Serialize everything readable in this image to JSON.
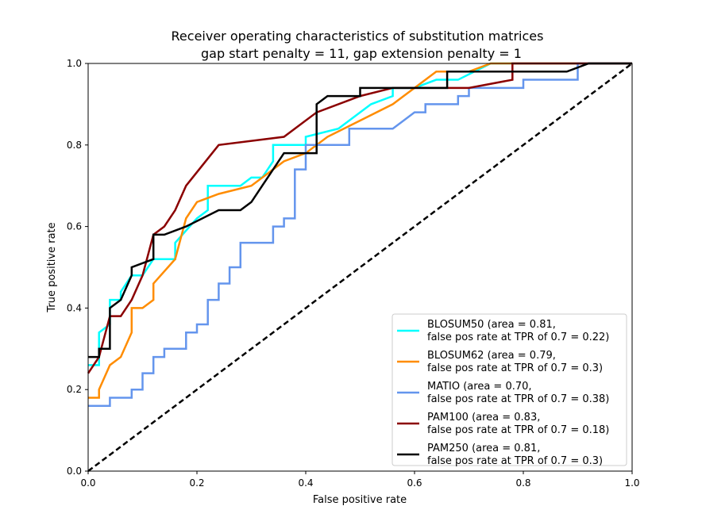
{
  "chart_data": {
    "type": "line",
    "title": "Receiver operating characteristics of substitution matrices",
    "subtitle": "gap start penalty = 11, gap extension penalty = 1",
    "xlabel": "False positive rate",
    "ylabel": "True positive rate",
    "xlim": [
      0.0,
      1.0
    ],
    "ylim": [
      0.0,
      1.0
    ],
    "x_ticks": [
      "0.0",
      "0.2",
      "0.4",
      "0.6",
      "0.8",
      "1.0"
    ],
    "y_ticks": [
      "0.0",
      "0.2",
      "0.4",
      "0.6",
      "0.8",
      "1.0"
    ],
    "grid": false,
    "legend_position": "lower-right",
    "series": [
      {
        "name": "BLOSUM50",
        "legend_line1": "BLOSUM50 (area = 0.81,",
        "legend_line2": "false pos rate at TPR of 0.7 = 0.22)",
        "color": "#00ffff",
        "x": [
          0,
          0.02,
          0.02,
          0.04,
          0.04,
          0.06,
          0.06,
          0.08,
          0.1,
          0.12,
          0.16,
          0.16,
          0.2,
          0.22,
          0.22,
          0.28,
          0.3,
          0.32,
          0.34,
          0.34,
          0.4,
          0.4,
          0.46,
          0.52,
          0.56,
          0.56,
          0.6,
          0.64,
          0.68,
          0.74,
          0.8,
          0.88,
          0.92,
          1.0
        ],
        "y": [
          0.26,
          0.26,
          0.34,
          0.36,
          0.42,
          0.42,
          0.44,
          0.48,
          0.48,
          0.52,
          0.52,
          0.56,
          0.62,
          0.64,
          0.7,
          0.7,
          0.72,
          0.72,
          0.76,
          0.8,
          0.8,
          0.82,
          0.84,
          0.9,
          0.92,
          0.94,
          0.94,
          0.96,
          0.96,
          1.0,
          1.0,
          1.0,
          1.0,
          1.0
        ]
      },
      {
        "name": "BLOSUM62",
        "legend_line1": "BLOSUM62 (area = 0.79,",
        "legend_line2": "false pos rate at TPR of 0.7 = 0.3)",
        "color": "#ff8c00",
        "x": [
          0,
          0.02,
          0.02,
          0.04,
          0.06,
          0.08,
          0.08,
          0.1,
          0.12,
          0.12,
          0.16,
          0.18,
          0.2,
          0.24,
          0.3,
          0.36,
          0.4,
          0.44,
          0.5,
          0.56,
          0.6,
          0.64,
          0.7,
          0.74,
          0.8,
          1.0
        ],
        "y": [
          0.18,
          0.18,
          0.2,
          0.26,
          0.28,
          0.34,
          0.4,
          0.4,
          0.42,
          0.46,
          0.52,
          0.62,
          0.66,
          0.68,
          0.7,
          0.76,
          0.78,
          0.82,
          0.86,
          0.9,
          0.94,
          0.98,
          0.98,
          1.0,
          1.0,
          1.0
        ]
      },
      {
        "name": "MATIO",
        "legend_line1": "MATIO (area = 0.70,",
        "legend_line2": "false pos rate at TPR of 0.7 = 0.38)",
        "color": "#6495ed",
        "x": [
          0,
          0.04,
          0.04,
          0.08,
          0.08,
          0.1,
          0.1,
          0.12,
          0.12,
          0.14,
          0.14,
          0.18,
          0.18,
          0.2,
          0.2,
          0.22,
          0.22,
          0.24,
          0.24,
          0.26,
          0.26,
          0.28,
          0.28,
          0.34,
          0.34,
          0.36,
          0.36,
          0.38,
          0.38,
          0.4,
          0.4,
          0.42,
          0.42,
          0.48,
          0.48,
          0.56,
          0.6,
          0.6,
          0.62,
          0.62,
          0.68,
          0.68,
          0.7,
          0.7,
          0.72,
          0.72,
          0.8,
          0.8,
          0.9,
          0.9,
          1.0
        ],
        "y": [
          0.16,
          0.16,
          0.18,
          0.18,
          0.2,
          0.2,
          0.24,
          0.24,
          0.28,
          0.28,
          0.3,
          0.3,
          0.34,
          0.34,
          0.36,
          0.36,
          0.42,
          0.42,
          0.46,
          0.46,
          0.5,
          0.5,
          0.56,
          0.56,
          0.6,
          0.6,
          0.62,
          0.62,
          0.74,
          0.74,
          0.8,
          0.8,
          0.8,
          0.8,
          0.84,
          0.84,
          0.88,
          0.88,
          0.88,
          0.9,
          0.9,
          0.92,
          0.92,
          0.94,
          0.94,
          0.94,
          0.94,
          0.96,
          0.96,
          1.0,
          1.0
        ]
      },
      {
        "name": "PAM100",
        "legend_line1": "PAM100 (area = 0.83,",
        "legend_line2": "false pos rate at TPR of 0.7 = 0.18)",
        "color": "#8b0000",
        "x": [
          0,
          0.02,
          0.04,
          0.06,
          0.08,
          0.1,
          0.12,
          0.14,
          0.16,
          0.18,
          0.24,
          0.36,
          0.42,
          0.5,
          0.56,
          0.64,
          0.7,
          0.78,
          0.78,
          0.84,
          0.9,
          1.0
        ],
        "y": [
          0.24,
          0.28,
          0.38,
          0.38,
          0.42,
          0.48,
          0.58,
          0.6,
          0.64,
          0.7,
          0.8,
          0.82,
          0.88,
          0.92,
          0.94,
          0.94,
          0.94,
          0.96,
          1.0,
          1.0,
          1.0,
          1.0
        ]
      },
      {
        "name": "PAM250",
        "legend_line1": "PAM250 (area = 0.81,",
        "legend_line2": "false pos rate at TPR of 0.7 = 0.3)",
        "color": "#000000",
        "x": [
          0,
          0.02,
          0.02,
          0.04,
          0.04,
          0.06,
          0.08,
          0.08,
          0.12,
          0.12,
          0.14,
          0.18,
          0.24,
          0.28,
          0.3,
          0.32,
          0.34,
          0.36,
          0.38,
          0.42,
          0.42,
          0.44,
          0.5,
          0.5,
          0.66,
          0.66,
          0.88,
          0.92,
          1.0
        ],
        "y": [
          0.28,
          0.28,
          0.3,
          0.3,
          0.4,
          0.42,
          0.48,
          0.5,
          0.52,
          0.58,
          0.58,
          0.6,
          0.64,
          0.64,
          0.66,
          0.7,
          0.74,
          0.78,
          0.78,
          0.78,
          0.9,
          0.92,
          0.92,
          0.94,
          0.94,
          0.98,
          0.98,
          1.0,
          1.0
        ]
      },
      {
        "name": "",
        "color": "#000000",
        "dashed": true,
        "x": [
          0,
          1
        ],
        "y": [
          0,
          1
        ]
      }
    ]
  }
}
